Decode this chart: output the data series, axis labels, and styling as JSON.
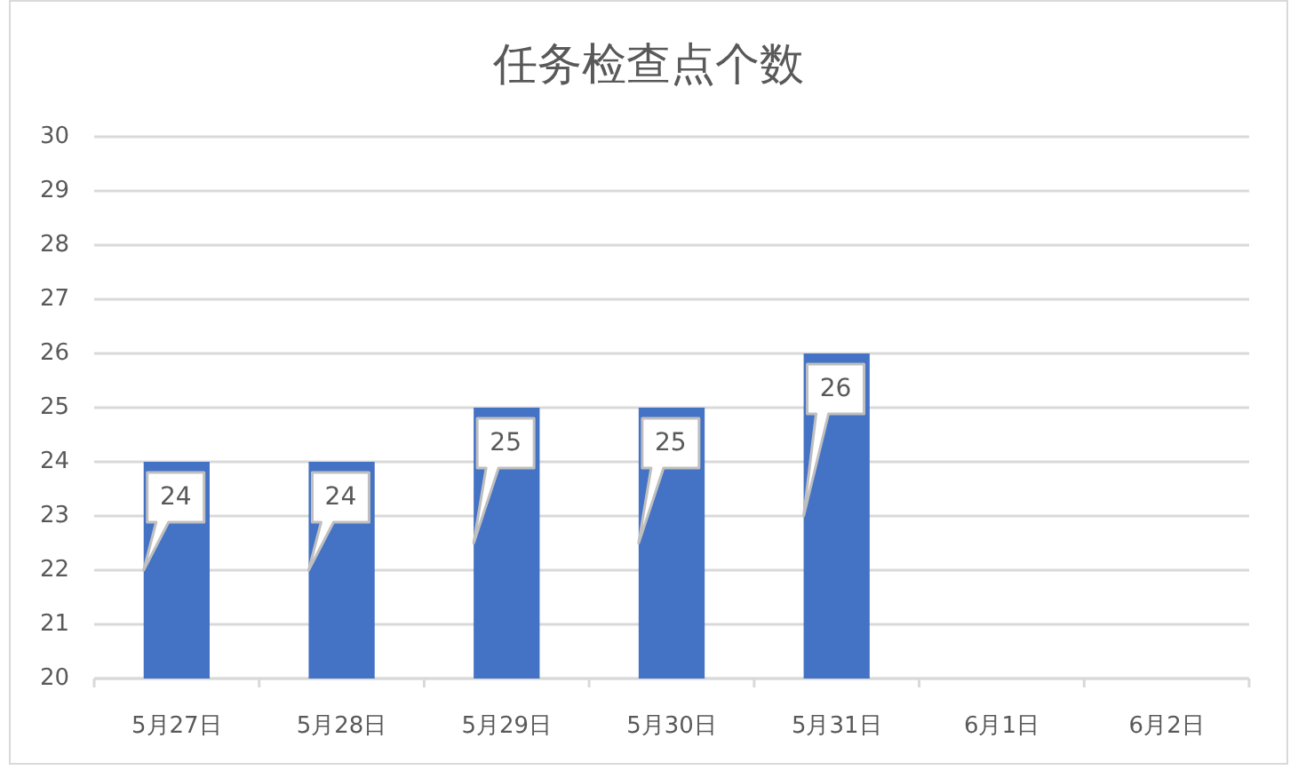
{
  "chart_data": {
    "type": "bar",
    "title": "任务检查点个数",
    "categories": [
      "5月27日",
      "5月28日",
      "5月29日",
      "5月30日",
      "5月31日",
      "6月1日",
      "6月2日"
    ],
    "values": [
      24,
      24,
      25,
      25,
      26,
      null,
      null
    ],
    "color": "#4472c4",
    "ylim": [
      20,
      30
    ],
    "yticks": [
      20,
      21,
      22,
      23,
      24,
      25,
      26,
      27,
      28,
      29,
      30
    ],
    "grid": "y",
    "data_labels": true
  }
}
